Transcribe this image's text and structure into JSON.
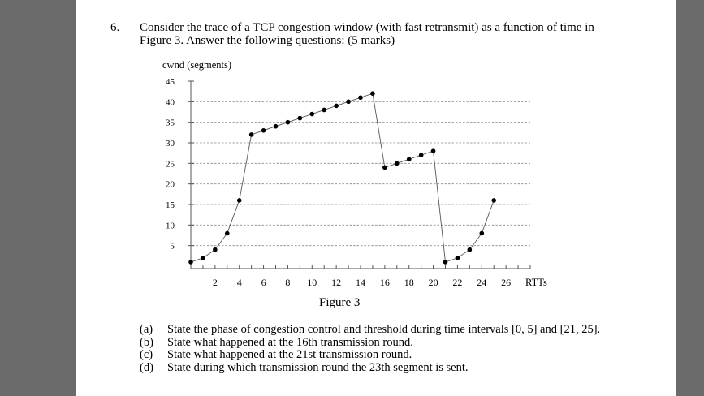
{
  "question": {
    "number": "6.",
    "line1": "Consider the trace of a TCP congestion window (with fast retransmit) as a function of time in",
    "line2": "Figure 3. Answer the following questions: (5 marks)"
  },
  "figure_caption": "Figure 3",
  "chart_data": {
    "type": "line",
    "ylabel": "cwnd (segments)",
    "xlabel": "RTTs",
    "xlim": [
      0,
      28
    ],
    "ylim": [
      0,
      45
    ],
    "y_ticks": [
      5,
      10,
      15,
      20,
      25,
      30,
      35,
      40,
      45
    ],
    "x_ticks": [
      2,
      4,
      6,
      8,
      10,
      12,
      14,
      16,
      18,
      20,
      22,
      24,
      26
    ],
    "grid": "dashed horizontal",
    "series": [
      {
        "x": [
          0,
          1,
          2,
          3,
          4,
          5,
          6,
          7,
          8,
          9,
          10,
          11,
          12,
          13,
          14,
          15,
          16,
          17,
          18,
          19,
          20,
          21,
          22,
          23,
          24,
          25
        ],
        "y": [
          1,
          2,
          4,
          8,
          16,
          32,
          33,
          34,
          35,
          36,
          37,
          38,
          39,
          40,
          41,
          42,
          24,
          25,
          26,
          27,
          28,
          1,
          2,
          4,
          8,
          16
        ]
      }
    ]
  },
  "parts": [
    {
      "label": "(a)",
      "text": "State the phase of congestion control and threshold during time intervals [0, 5] and [21, 25]."
    },
    {
      "label": "(b)",
      "text": "State what happened at the 16th transmission round."
    },
    {
      "label": "(c)",
      "text": "State what happened at the 21st transmission round."
    },
    {
      "label": "(d)",
      "text": "State during which transmission round the 23th segment is sent."
    }
  ]
}
